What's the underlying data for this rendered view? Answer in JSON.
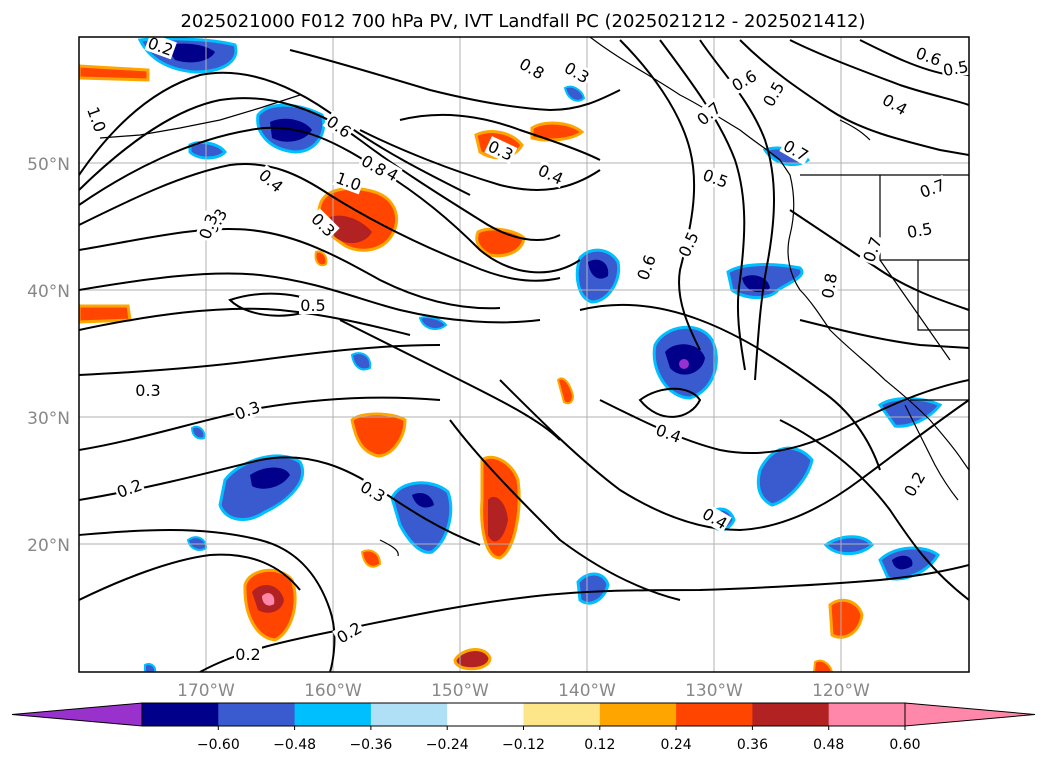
{
  "title": "2025021000 F012 700 hPa PV, IVT Landfall PC (2025021212 - 2025021412)",
  "map": {
    "lon_range": [
      -180,
      -110
    ],
    "lat_range": [
      10,
      60
    ],
    "lat_ticks": [
      "50°N",
      "40°N",
      "30°N",
      "20°N"
    ],
    "lon_ticks": [
      "170°W",
      "160°W",
      "150°W",
      "140°W",
      "130°W",
      "120°W"
    ],
    "grid": true,
    "contour_color": "#000000"
  },
  "contour_labels": [
    "0.2",
    "1.0",
    "0.4",
    "0.3",
    "1.0",
    "0.4",
    "0.3",
    "0.6",
    "0.8",
    "0.3",
    "0.4",
    "0.3",
    "0.8",
    "0.6",
    "0.5",
    "0.6",
    "0.5",
    "0.7",
    "0.5",
    "0.7",
    "0.7",
    "0.5",
    "0.4",
    "0.6",
    "0.8",
    "0.7",
    "0.5",
    "0.5",
    "0.3",
    "0.2",
    "0.3",
    "0.4",
    "0.3",
    "0.2",
    "0.4",
    "0.3",
    "0.2",
    "0.2"
  ],
  "colorbar": {
    "colors": [
      "#9932cc",
      "#00008b",
      "#3a5bcf",
      "#00bfff",
      "#b0e0f6",
      "#ffffff",
      "#fde68a",
      "#ffa500",
      "#ff4500",
      "#b22222",
      "#ff88aa",
      "#ff88aa"
    ],
    "tick_labels": [
      "−0.60",
      "−0.48",
      "−0.36",
      "−0.24",
      "−0.12",
      "0.12",
      "0.24",
      "0.36",
      "0.48",
      "0.60"
    ],
    "extend": "both"
  }
}
